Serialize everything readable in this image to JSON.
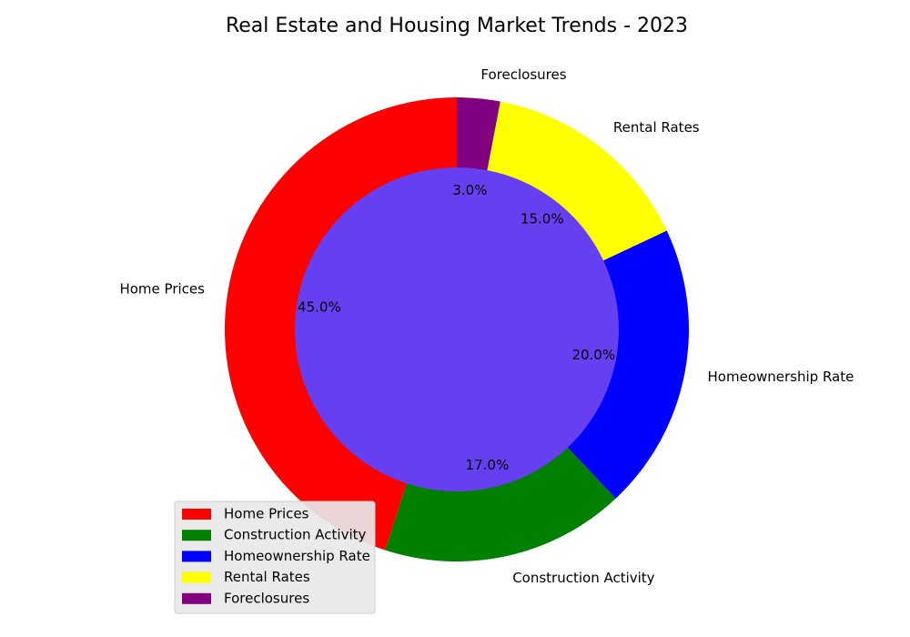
{
  "chart_data": {
    "type": "pie",
    "title": "Real Estate and Housing Market Trends - 2023",
    "slices": [
      {
        "label": "Home Prices",
        "value": 45.0,
        "pct_label": "45.0%",
        "color": "#ff0000"
      },
      {
        "label": "Construction Activity",
        "value": 17.0,
        "pct_label": "17.0%",
        "color": "#008000"
      },
      {
        "label": "Homeownership Rate",
        "value": 20.0,
        "pct_label": "20.0%",
        "color": "#0000ff"
      },
      {
        "label": "Rental Rates",
        "value": 15.0,
        "pct_label": "15.0%",
        "color": "#ffff00"
      },
      {
        "label": "Foreclosures",
        "value": 3.0,
        "pct_label": "3.0%",
        "color": "#800080"
      }
    ],
    "start_angle_deg": 90,
    "direction": "counterclockwise",
    "center_color": "#6640f0",
    "legend": {
      "placement": "lower-left"
    }
  }
}
